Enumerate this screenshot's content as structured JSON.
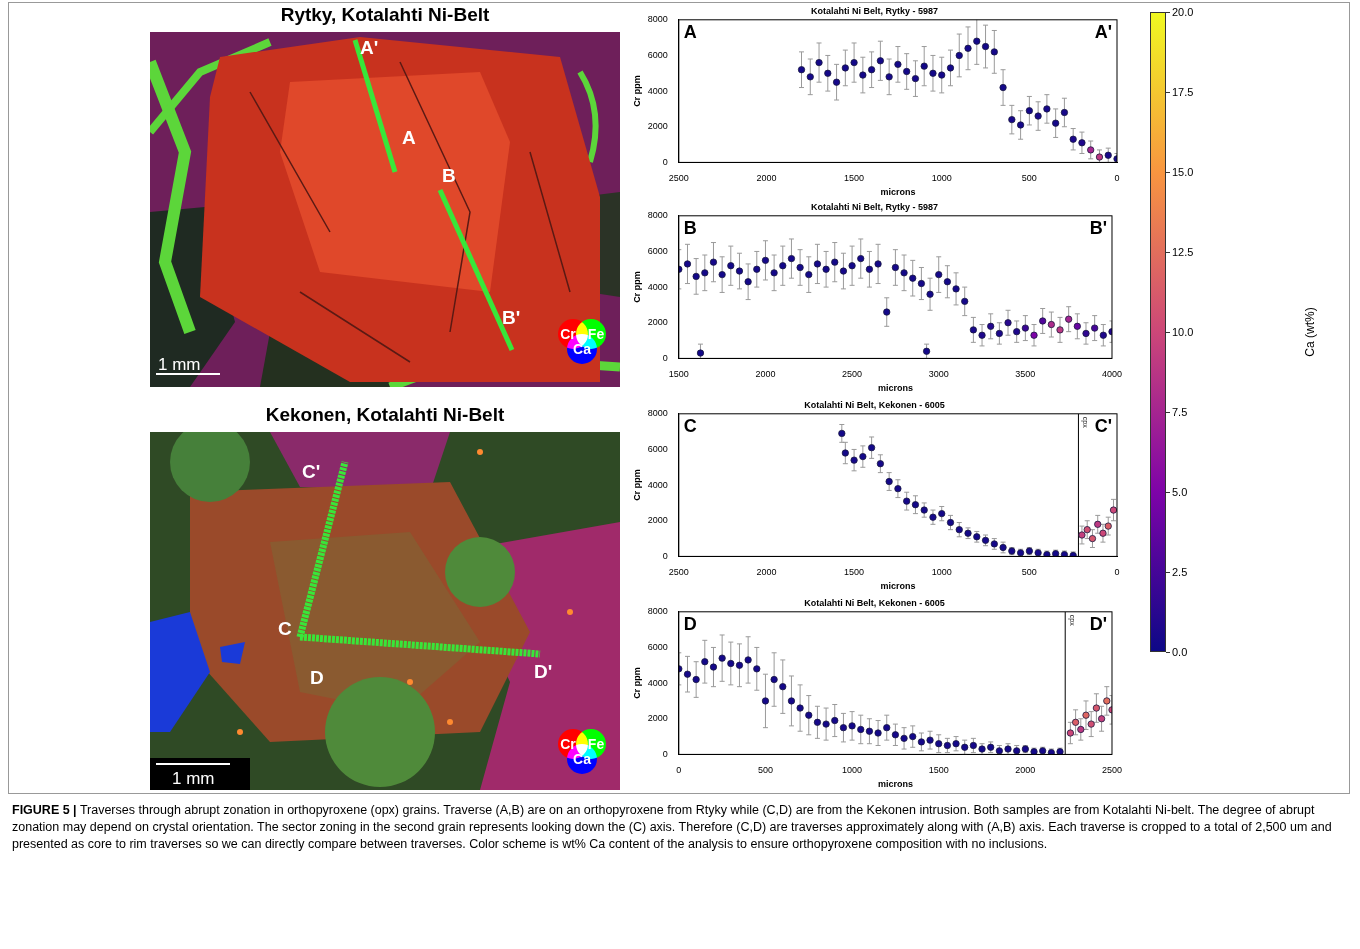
{
  "maps": [
    {
      "title": "Rytky, Kotalahti Ni-Belt",
      "points": [
        "A'",
        "A",
        "B",
        "B'"
      ],
      "scale_bar": "1 mm",
      "channels": [
        {
          "name": "Cr",
          "color": "#ff0000"
        },
        {
          "name": "Fe",
          "color": "#00ff00"
        },
        {
          "name": "Ca",
          "color": "#0000ff"
        }
      ]
    },
    {
      "title": "Kekonen, Kotalahti Ni-Belt",
      "points": [
        "C'",
        "C",
        "D",
        "D'"
      ],
      "scale_bar": "1 mm",
      "channels": [
        {
          "name": "Cr",
          "color": "#ff0000"
        },
        {
          "name": "Fe",
          "color": "#00ff00"
        },
        {
          "name": "Ca",
          "color": "#0000ff"
        }
      ]
    }
  ],
  "chart_data": [
    {
      "type": "scatter",
      "title": "Kotalahti Ni Belt, Rytky - 5987",
      "start_label": "A",
      "end_label": "A'",
      "x_label": "microns",
      "y_label": "Cr ppm",
      "xlim": [
        2500,
        0
      ],
      "xticks": [
        2500,
        2000,
        1500,
        1000,
        500,
        0
      ],
      "ylim": [
        0,
        8000
      ],
      "yticks": [
        0,
        2000,
        4000,
        6000,
        8000
      ],
      "grid": false,
      "series": [
        {
          "marker": "circle",
          "x": [
            1800,
            1750,
            1700,
            1650,
            1600,
            1550,
            1500,
            1450,
            1400,
            1350,
            1300,
            1250,
            1200,
            1150,
            1100,
            1050,
            1000,
            950,
            900,
            850,
            800,
            750,
            700,
            650,
            600,
            550,
            500,
            450,
            400,
            350,
            300,
            250,
            200,
            150,
            100,
            50,
            0
          ],
          "values": [
            5200,
            4800,
            5600,
            5000,
            4500,
            5300,
            5600,
            4900,
            5200,
            5700,
            4800,
            5500,
            5100,
            4700,
            5400,
            5000,
            4900,
            5300,
            6000,
            6400,
            6800,
            6500,
            6200,
            4200,
            2400,
            2100,
            2900,
            2600,
            3000,
            2200,
            2800,
            1300,
            1100,
            700,
            300,
            400,
            200
          ],
          "errors": [
            1000,
            1000,
            1100,
            1000,
            1000,
            1000,
            1100,
            1000,
            1000,
            1100,
            1000,
            1000,
            1000,
            1000,
            1100,
            1000,
            1000,
            1000,
            1200,
            1200,
            1300,
            1200,
            1200,
            1000,
            800,
            800,
            800,
            800,
            800,
            800,
            800,
            600,
            600,
            500,
            400,
            400,
            300
          ],
          "ca": [
            0.3,
            0.4,
            0.3,
            0.3,
            0.4,
            0.3,
            0.3,
            0.4,
            0.3,
            0.3,
            0.4,
            0.3,
            0.3,
            0.4,
            0.3,
            0.3,
            0.4,
            0.3,
            0.3,
            0.4,
            0.3,
            0.3,
            0.4,
            0.3,
            0.5,
            0.4,
            0.3,
            0.5,
            0.4,
            0.3,
            0.5,
            0.6,
            0.8,
            7.5,
            9.0,
            0.5,
            0.4
          ]
        }
      ]
    },
    {
      "type": "scatter",
      "title": "Kotalahti Ni Belt, Rytky - 5987",
      "start_label": "B",
      "end_label": "B'",
      "x_label": "microns",
      "y_label": "Cr ppm",
      "xlim": [
        1500,
        4000
      ],
      "xticks": [
        1500,
        2000,
        2500,
        3000,
        3500,
        4000
      ],
      "ylim": [
        0,
        8000
      ],
      "yticks": [
        0,
        2000,
        4000,
        6000,
        8000
      ],
      "grid": false,
      "series": [
        {
          "marker": "circle",
          "x": [
            1500,
            1550,
            1600,
            1625,
            1650,
            1700,
            1750,
            1800,
            1850,
            1900,
            1950,
            2000,
            2050,
            2100,
            2150,
            2200,
            2250,
            2300,
            2350,
            2400,
            2450,
            2500,
            2550,
            2600,
            2650,
            2700,
            2750,
            2800,
            2850,
            2900,
            2930,
            2950,
            3000,
            3050,
            3100,
            3150,
            3200,
            3250,
            3300,
            3350,
            3400,
            3450,
            3500,
            3550,
            3600,
            3650,
            3700,
            3750,
            3800,
            3850,
            3900,
            3950,
            4000
          ],
          "values": [
            5000,
            5300,
            4600,
            300,
            4800,
            5400,
            4700,
            5200,
            4900,
            4300,
            5000,
            5500,
            4800,
            5200,
            5600,
            5100,
            4700,
            5300,
            5000,
            5400,
            4900,
            5200,
            5600,
            5000,
            5300,
            2600,
            5100,
            4800,
            4500,
            4200,
            400,
            3600,
            4700,
            4300,
            3900,
            3200,
            1600,
            1300,
            1800,
            1400,
            2000,
            1500,
            1700,
            1300,
            2100,
            1900,
            1600,
            2200,
            1800,
            1400,
            1700,
            1300,
            1500
          ],
          "errors": [
            1100,
            1100,
            1000,
            500,
            1000,
            1100,
            1000,
            1100,
            1000,
            1000,
            1000,
            1100,
            1000,
            1100,
            1100,
            1000,
            1000,
            1100,
            1000,
            1100,
            1000,
            1100,
            1100,
            1000,
            1100,
            800,
            1000,
            1000,
            1000,
            900,
            400,
            900,
            1000,
            900,
            900,
            800,
            700,
            600,
            700,
            600,
            700,
            600,
            700,
            600,
            700,
            700,
            700,
            700,
            700,
            600,
            700,
            600,
            600
          ],
          "ca": [
            0.3,
            0.4,
            0.3,
            0.2,
            0.3,
            0.4,
            0.3,
            0.3,
            0.4,
            0.3,
            0.3,
            0.4,
            0.3,
            0.3,
            0.4,
            0.3,
            0.3,
            0.4,
            0.3,
            0.3,
            0.4,
            0.3,
            0.3,
            0.4,
            0.3,
            0.3,
            0.4,
            0.3,
            0.3,
            0.4,
            0.3,
            0.3,
            0.4,
            0.3,
            0.3,
            0.4,
            0.5,
            0.8,
            1.0,
            0.6,
            1.2,
            0.8,
            2.0,
            5.0,
            3.0,
            8.0,
            9.0,
            7.5,
            4.0,
            1.5,
            2.5,
            0.8,
            1.0
          ]
        }
      ]
    },
    {
      "type": "scatter",
      "title": "Kotalahti Ni Belt, Kekonen - 6005",
      "start_label": "C",
      "end_label": "C'",
      "x_label": "microns",
      "y_label": "Cr ppm",
      "xlim": [
        2500,
        0
      ],
      "xticks": [
        2500,
        2000,
        1500,
        1000,
        500,
        0
      ],
      "ylim": [
        0,
        8000
      ],
      "yticks": [
        0,
        2000,
        4000,
        6000,
        8000
      ],
      "grid": false,
      "boundary": {
        "x": 220,
        "label": "cpx"
      },
      "series": [
        {
          "marker": "circle",
          "x": [
            1570,
            1550,
            1500,
            1450,
            1400,
            1350,
            1300,
            1250,
            1200,
            1150,
            1100,
            1050,
            1000,
            950,
            900,
            850,
            800,
            750,
            700,
            650,
            600,
            550,
            500,
            450,
            400,
            350,
            300,
            250,
            200,
            170,
            140,
            110,
            80,
            50,
            20
          ],
          "values": [
            6900,
            5800,
            5400,
            5600,
            6100,
            5200,
            4200,
            3800,
            3100,
            2900,
            2600,
            2200,
            2400,
            1900,
            1500,
            1300,
            1100,
            900,
            700,
            500,
            300,
            200,
            300,
            200,
            100,
            150,
            100,
            50,
            1200,
            1500,
            1000,
            1800,
            1300,
            1700,
            2600
          ],
          "errors": [
            500,
            600,
            600,
            600,
            600,
            500,
            500,
            500,
            500,
            500,
            400,
            400,
            400,
            400,
            400,
            300,
            300,
            300,
            300,
            300,
            200,
            200,
            200,
            200,
            200,
            200,
            200,
            200,
            500,
            500,
            500,
            500,
            500,
            500,
            600
          ],
          "ca": [
            0.3,
            0.3,
            0.4,
            0.3,
            0.3,
            0.4,
            0.3,
            0.3,
            0.4,
            0.3,
            0.3,
            0.4,
            0.3,
            0.3,
            0.4,
            0.3,
            0.3,
            0.4,
            0.3,
            0.3,
            0.4,
            0.3,
            0.3,
            0.4,
            0.3,
            0.3,
            0.4,
            0.3,
            9.5,
            10.5,
            11.0,
            9.0,
            10.0,
            11.5,
            10.0
          ]
        }
      ]
    },
    {
      "type": "scatter",
      "title": "Kotalahti Ni Belt, Kekonen - 6005",
      "start_label": "D",
      "end_label": "D'",
      "x_label": "microns",
      "y_label": "Cr ppm",
      "xlim": [
        0,
        2500
      ],
      "xticks": [
        0,
        500,
        1000,
        1500,
        2000,
        2500
      ],
      "ylim": [
        0,
        8000
      ],
      "yticks": [
        0,
        2000,
        4000,
        6000,
        8000
      ],
      "grid": false,
      "boundary": {
        "x": 2230,
        "label": "cpx"
      },
      "series": [
        {
          "marker": "circle",
          "x": [
            0,
            50,
            100,
            150,
            200,
            250,
            300,
            350,
            400,
            450,
            500,
            550,
            600,
            650,
            700,
            750,
            800,
            850,
            900,
            950,
            1000,
            1050,
            1100,
            1150,
            1200,
            1250,
            1300,
            1350,
            1400,
            1450,
            1500,
            1550,
            1600,
            1650,
            1700,
            1750,
            1800,
            1850,
            1900,
            1950,
            2000,
            2050,
            2100,
            2150,
            2200,
            2260,
            2290,
            2320,
            2350,
            2380,
            2410,
            2440,
            2470,
            2500
          ],
          "values": [
            4800,
            4500,
            4200,
            5200,
            4900,
            5400,
            5100,
            5000,
            5300,
            4800,
            3000,
            4200,
            3800,
            3000,
            2600,
            2200,
            1800,
            1700,
            1900,
            1500,
            1600,
            1400,
            1300,
            1200,
            1500,
            1100,
            900,
            1000,
            700,
            800,
            600,
            500,
            600,
            400,
            500,
            300,
            400,
            200,
            300,
            200,
            300,
            150,
            200,
            100,
            150,
            1200,
            1800,
            1400,
            2200,
            1700,
            2600,
            2000,
            3000,
            2500
          ],
          "errors": [
            900,
            1000,
            1000,
            1200,
            1100,
            1300,
            1200,
            1200,
            1300,
            1200,
            1500,
            1500,
            1500,
            1400,
            1300,
            1100,
            900,
            900,
            900,
            800,
            800,
            800,
            700,
            700,
            700,
            600,
            600,
            600,
            500,
            500,
            500,
            400,
            400,
            400,
            400,
            300,
            300,
            300,
            300,
            300,
            200,
            200,
            200,
            200,
            200,
            600,
            700,
            600,
            800,
            700,
            800,
            700,
            800,
            800
          ],
          "ca": [
            0.3,
            0.4,
            0.3,
            0.3,
            0.4,
            0.3,
            0.3,
            0.4,
            0.3,
            0.3,
            0.4,
            0.3,
            0.3,
            0.4,
            0.3,
            0.3,
            0.4,
            0.3,
            0.3,
            0.4,
            0.3,
            0.3,
            0.4,
            0.3,
            0.3,
            0.4,
            0.3,
            0.3,
            0.4,
            0.3,
            0.3,
            0.4,
            0.3,
            0.3,
            0.4,
            0.3,
            0.3,
            0.4,
            0.3,
            0.3,
            0.4,
            0.3,
            0.3,
            0.4,
            0.3,
            10.0,
            11.5,
            9.0,
            12.0,
            10.5,
            11.0,
            9.5,
            12.5,
            10.0
          ]
        }
      ]
    }
  ],
  "colorbar": {
    "label": "Ca (wt%)",
    "lim": [
      0,
      20
    ],
    "ticks": [
      {
        "value": 0,
        "label": "0.0"
      },
      {
        "value": 2.5,
        "label": "2.5"
      },
      {
        "value": 5,
        "label": "5.0"
      },
      {
        "value": 7.5,
        "label": "7.5"
      },
      {
        "value": 10,
        "label": "10.0"
      },
      {
        "value": 12.5,
        "label": "12.5"
      },
      {
        "value": 15,
        "label": "15.0"
      },
      {
        "value": 17.5,
        "label": "17.5"
      },
      {
        "value": 20,
        "label": "20.0"
      }
    ]
  },
  "caption_label": "FIGURE 5 |",
  "caption": "Traverses through abrupt zonation in orthopyroxene (opx) grains. Traverse (A,B) are on an orthopyroxene from Rtyky while (C,D) are from the Kekonen intrusion. Both samples are from Kotalahti Ni-belt. The degree of abrupt zonation may depend on crystal orientation. The sector zoning in the second grain represents looking down the (C) axis. Therefore (C,D) are traverses approximately along with (A,B) axis. Each traverse is cropped to a total of 2,500 um and presented as core to rim traverses so we can directly compare between traverses. Color scheme is wt% Ca content of the analysis to ensure orthopyroxene composition with no inclusions."
}
